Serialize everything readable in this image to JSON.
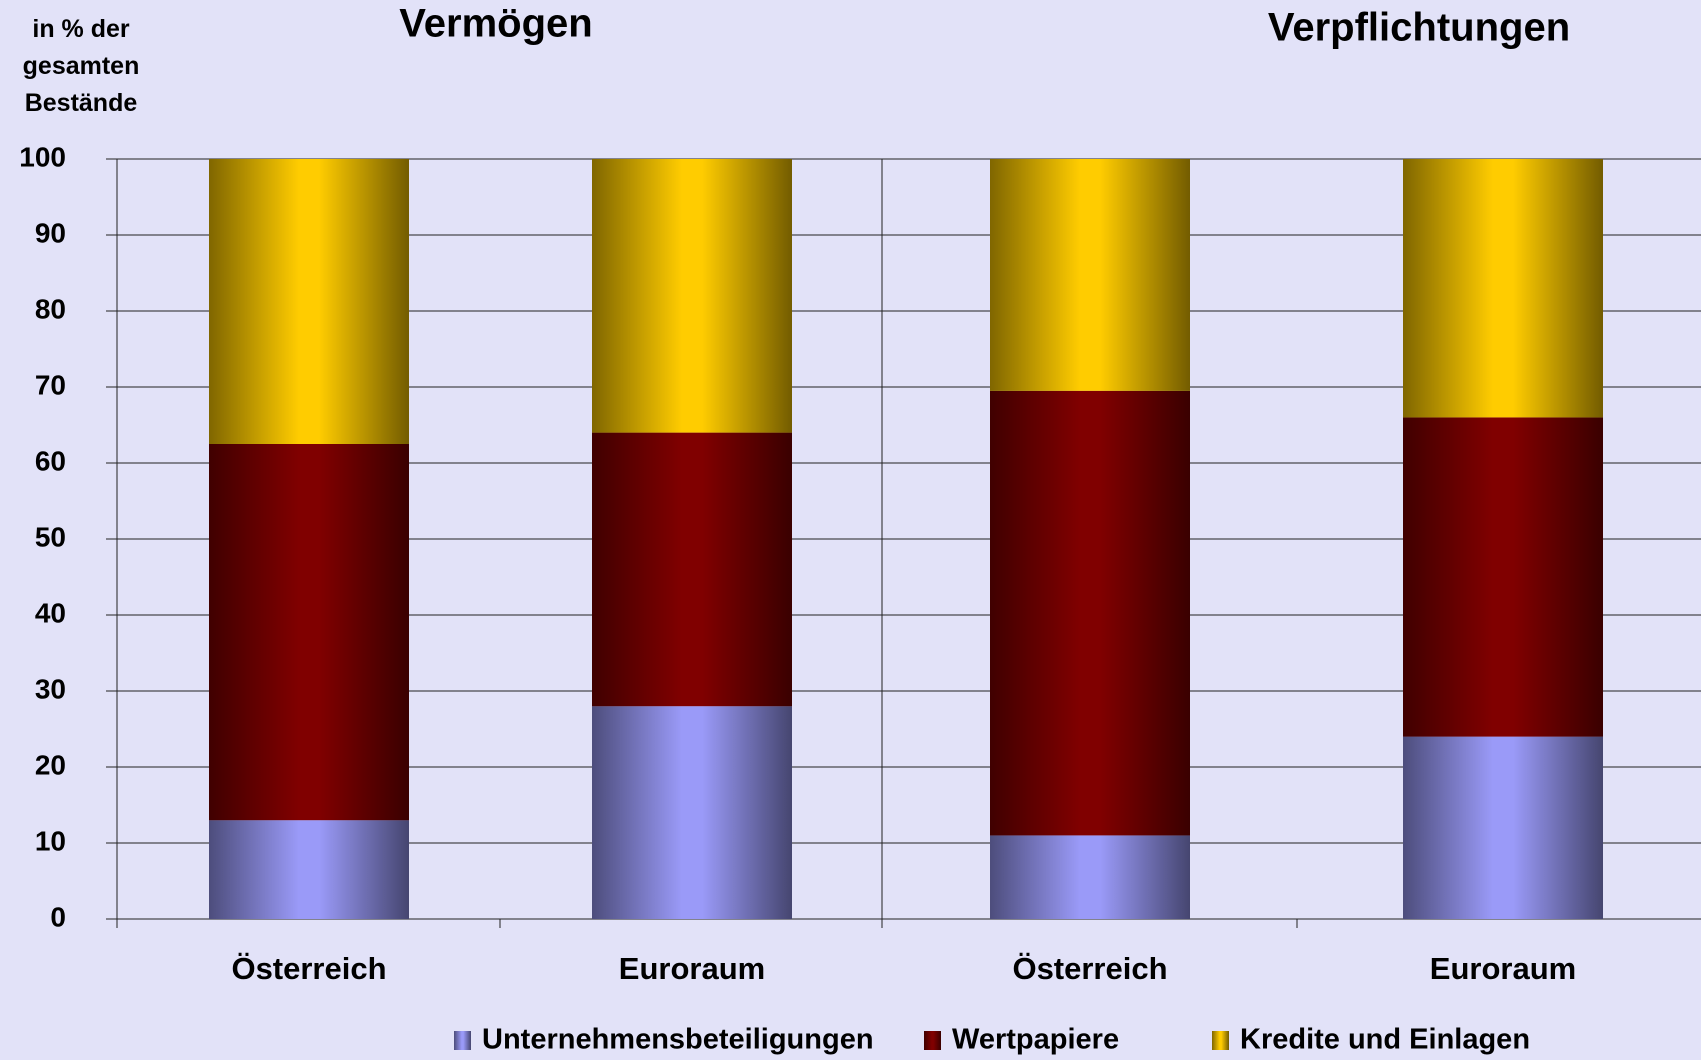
{
  "chart_data": {
    "type": "stacked_bar",
    "ylabel": "in % der gesamten Bestände",
    "groups": [
      "Vermögen",
      "Verpflichtungen"
    ],
    "categories": [
      "Österreich",
      "Euroraum",
      "Österreich",
      "Euroraum"
    ],
    "series": [
      {
        "name": "Unternehmensbeteiligungen",
        "color": "#9a9af8",
        "values": [
          13,
          28,
          11,
          24
        ]
      },
      {
        "name": "Wertpapiere",
        "color": "#800000",
        "values": [
          49.5,
          36,
          58.5,
          42
        ]
      },
      {
        "name": "Kredite und Einlagen",
        "color": "#ffcc00",
        "values": [
          37.5,
          36,
          30.5,
          34
        ]
      }
    ],
    "ylim": [
      0,
      100
    ],
    "yticks": [
      0,
      10,
      20,
      30,
      40,
      50,
      60,
      70,
      80,
      90,
      100
    ],
    "grid": true
  }
}
